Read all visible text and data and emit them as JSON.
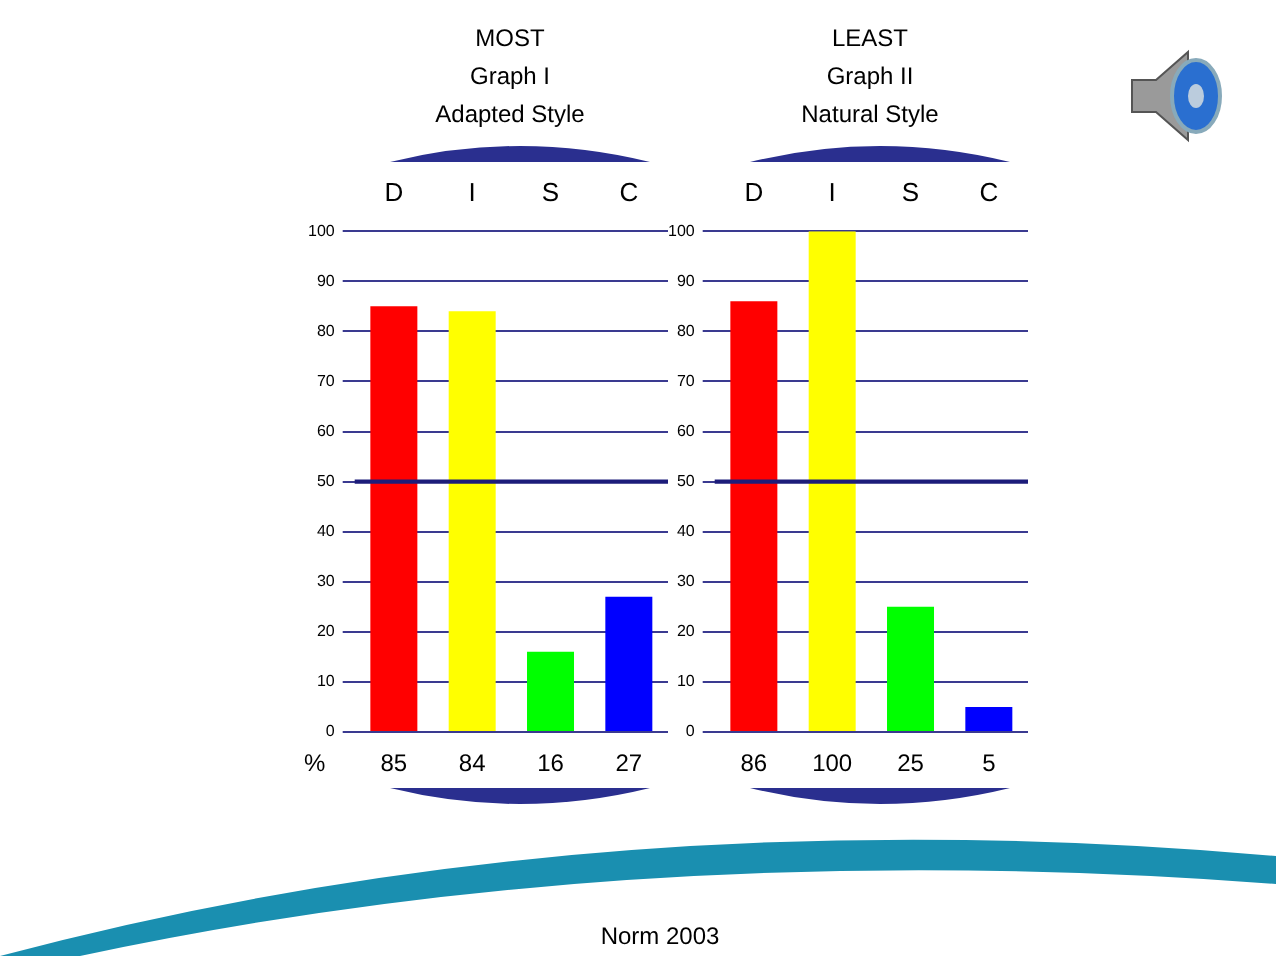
{
  "chart_data": [
    {
      "type": "bar",
      "title": "MOST",
      "subtitle": "Graph I\nAdapted Style",
      "categories": [
        "D",
        "I",
        "S",
        "C"
      ],
      "values": [
        85,
        84,
        16,
        27
      ],
      "colors": [
        "#ff0000",
        "#ffff00",
        "#00ff00",
        "#0000ff"
      ],
      "ylim": [
        0,
        100
      ],
      "yticks": [
        0,
        10,
        20,
        30,
        40,
        50,
        60,
        70,
        80,
        90,
        100
      ],
      "grid": "y",
      "data_labels": true,
      "ref_lines": [
        {
          "axis": "y",
          "value": 50,
          "color": "#1c1c7a"
        }
      ],
      "annotations": [
        "%",
        "Norm 2003"
      ]
    },
    {
      "type": "bar",
      "title": "LEAST",
      "subtitle": "Graph II\nNatural Style",
      "categories": [
        "D",
        "I",
        "S",
        "C"
      ],
      "values": [
        86,
        100,
        25,
        5
      ],
      "colors": [
        "#ff0000",
        "#ffff00",
        "#00ff00",
        "#0000ff"
      ],
      "ylim": [
        0,
        100
      ],
      "yticks": [
        0,
        10,
        20,
        30,
        40,
        50,
        60,
        70,
        80,
        90,
        100
      ],
      "grid": "y",
      "data_labels": true,
      "ref_lines": [
        {
          "axis": "y",
          "value": 50,
          "color": "#1c1c7a"
        }
      ]
    }
  ]
}
